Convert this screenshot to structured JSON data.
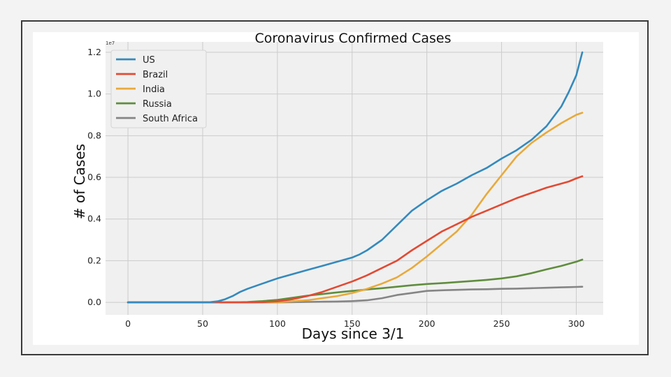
{
  "chart_data": {
    "type": "line",
    "title": "Coronavirus Confirmed Cases",
    "xlabel": "Days since 3/1",
    "ylabel": "# of Cases",
    "y_multiplier_label": "1e7",
    "xlim": [
      -15,
      318
    ],
    "ylim": [
      -0.06,
      1.25
    ],
    "xticks": [
      0,
      50,
      100,
      150,
      200,
      250,
      300
    ],
    "yticks": [
      0.0,
      0.2,
      0.4,
      0.6,
      0.8,
      1.0,
      1.2
    ],
    "ytick_labels": [
      "0.0",
      "0.2",
      "0.4",
      "0.6",
      "0.8",
      "1.0",
      "1.2"
    ],
    "grid": true,
    "legend_position": "top-left",
    "x": [
      0,
      10,
      20,
      30,
      40,
      50,
      55,
      60,
      65,
      70,
      75,
      80,
      90,
      100,
      110,
      120,
      130,
      140,
      150,
      155,
      160,
      170,
      180,
      190,
      200,
      210,
      220,
      230,
      240,
      250,
      260,
      270,
      280,
      290,
      295,
      300,
      304
    ],
    "series": [
      {
        "name": "US",
        "color": "#348abd",
        "values": [
          0,
          0,
          0,
          0,
          0,
          0,
          0.001,
          0.005,
          0.015,
          0.03,
          0.05,
          0.065,
          0.09,
          0.115,
          0.135,
          0.155,
          0.175,
          0.195,
          0.215,
          0.23,
          0.25,
          0.3,
          0.37,
          0.44,
          0.49,
          0.535,
          0.57,
          0.61,
          0.645,
          0.69,
          0.73,
          0.78,
          0.845,
          0.94,
          1.01,
          1.09,
          1.2
        ]
      },
      {
        "name": "Brazil",
        "color": "#e24a33",
        "values": [
          0,
          0,
          0,
          0,
          0,
          0,
          0,
          0,
          0,
          0,
          0,
          0,
          0.001,
          0.005,
          0.015,
          0.03,
          0.05,
          0.075,
          0.1,
          0.115,
          0.13,
          0.165,
          0.2,
          0.25,
          0.295,
          0.34,
          0.375,
          0.41,
          0.44,
          0.47,
          0.5,
          0.525,
          0.55,
          0.57,
          0.58,
          0.595,
          0.605
        ]
      },
      {
        "name": "India",
        "color": "#e8a93a",
        "values": [
          0,
          0,
          0,
          0,
          0,
          0,
          0,
          0,
          0,
          0,
          0,
          0,
          0,
          0.001,
          0.005,
          0.01,
          0.02,
          0.03,
          0.045,
          0.055,
          0.065,
          0.09,
          0.12,
          0.165,
          0.22,
          0.28,
          0.34,
          0.42,
          0.52,
          0.61,
          0.7,
          0.765,
          0.815,
          0.86,
          0.88,
          0.9,
          0.91
        ]
      },
      {
        "name": "Russia",
        "color": "#5f8d3d",
        "values": [
          0,
          0,
          0,
          0,
          0,
          0,
          0,
          0,
          0,
          0,
          0.001,
          0.002,
          0.006,
          0.012,
          0.022,
          0.032,
          0.04,
          0.048,
          0.055,
          0.058,
          0.062,
          0.068,
          0.075,
          0.082,
          0.088,
          0.092,
          0.097,
          0.102,
          0.108,
          0.115,
          0.125,
          0.14,
          0.158,
          0.175,
          0.185,
          0.195,
          0.205
        ]
      },
      {
        "name": "South Africa",
        "color": "#858585",
        "values": [
          0,
          0,
          0,
          0,
          0,
          0,
          0,
          0,
          0,
          0,
          0,
          0,
          0,
          0,
          0.001,
          0.002,
          0.003,
          0.004,
          0.006,
          0.008,
          0.01,
          0.02,
          0.035,
          0.045,
          0.055,
          0.058,
          0.06,
          0.062,
          0.063,
          0.065,
          0.066,
          0.068,
          0.07,
          0.072,
          0.073,
          0.074,
          0.075
        ]
      }
    ]
  }
}
